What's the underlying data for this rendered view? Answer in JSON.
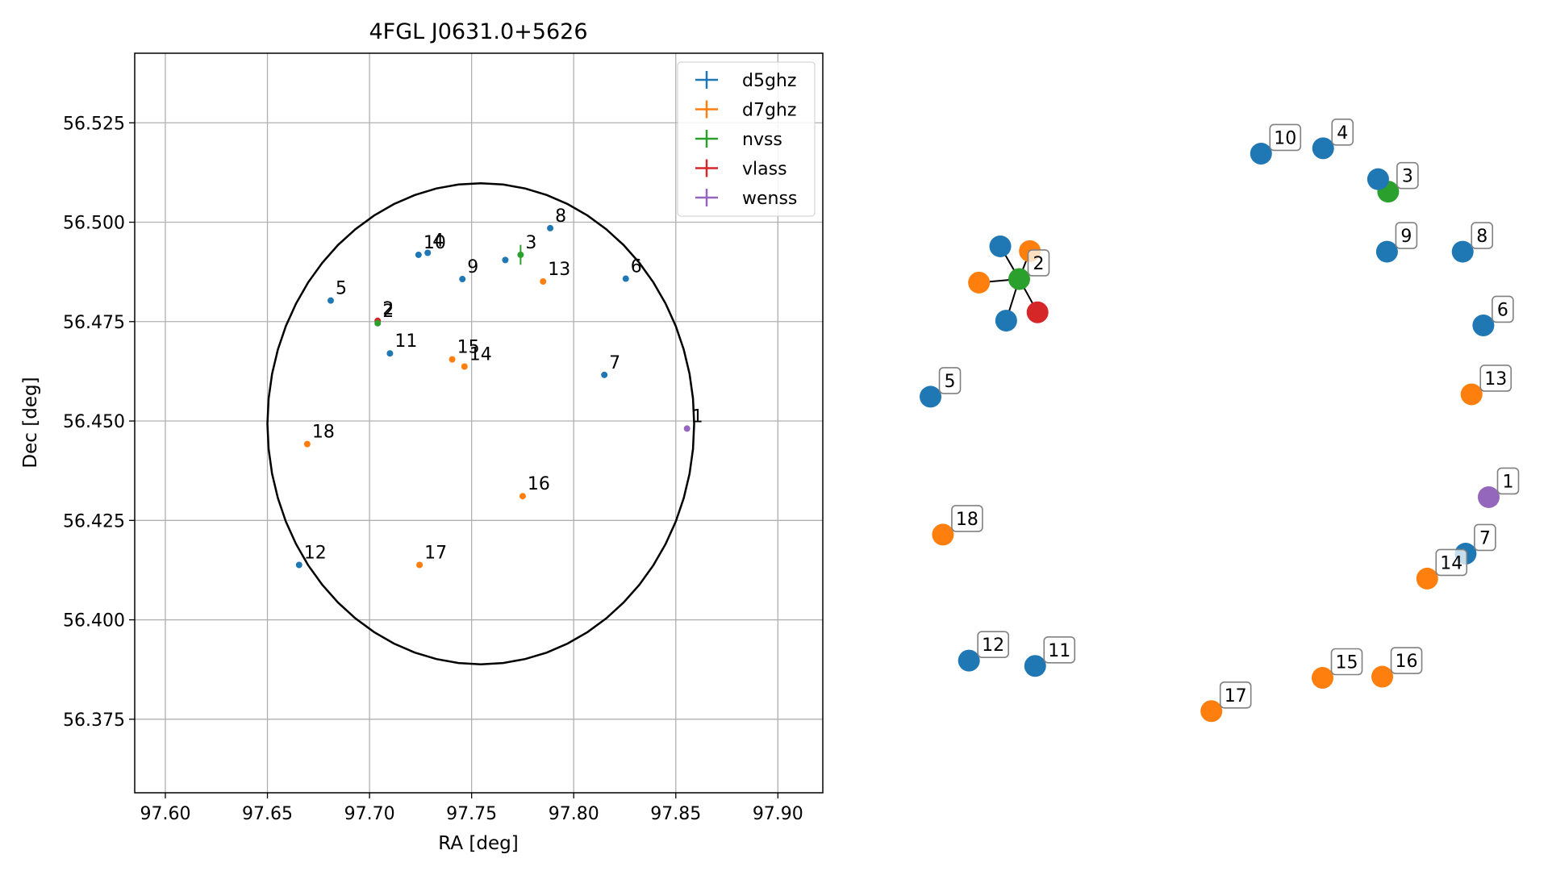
{
  "colors": {
    "d5ghz": "#1f77b4",
    "d7ghz": "#ff7f0e",
    "nvss": "#2ca02c",
    "vlass": "#d62728",
    "wenss": "#9467bd",
    "circle": "#000000",
    "grid": "#b0b0b0"
  },
  "chart_data": [
    {
      "type": "scatter",
      "title": "4FGL J0631.0+5626",
      "xlabel": "RA [deg]",
      "ylabel": "Dec [deg]",
      "xlim": [
        97.585,
        97.922
      ],
      "ylim": [
        56.3565,
        56.5425
      ],
      "xticks": [
        97.6,
        97.65,
        97.7,
        97.75,
        97.8,
        97.85,
        97.9
      ],
      "xtick_labels": [
        "97.60",
        "97.65",
        "97.70",
        "97.75",
        "97.80",
        "97.85",
        "97.90"
      ],
      "yticks": [
        56.375,
        56.4,
        56.425,
        56.45,
        56.475,
        56.5,
        56.525
      ],
      "ytick_labels": [
        "56.375",
        "56.400",
        "56.425",
        "56.450",
        "56.475",
        "56.500",
        "56.525"
      ],
      "grid": true,
      "legend_position": "top-right",
      "legend": [
        "d5ghz",
        "d7ghz",
        "nvss",
        "vlass",
        "wenss"
      ],
      "ellipse": {
        "center": [
          97.7545,
          56.4493
        ],
        "semi_axes": [
          0.1045,
          0.0605
        ]
      },
      "points": [
        {
          "label": "1",
          "survey": "wenss",
          "ra": 97.8555,
          "dec": 56.4481
        },
        {
          "label": "2",
          "survey": "vlass",
          "ra": 97.704,
          "dec": 56.4752
        },
        {
          "label": "2",
          "survey": "nvss",
          "ra": 97.704,
          "dec": 56.4746
        },
        {
          "label": "3",
          "survey": "nvss",
          "ra": 97.774,
          "dec": 56.4918,
          "dec_err": 0.0025
        },
        {
          "label": "4",
          "survey": "d5ghz",
          "ra": 97.7285,
          "dec": 56.4923
        },
        {
          "label": "5",
          "survey": "d5ghz",
          "ra": 97.681,
          "dec": 56.4803
        },
        {
          "label": "6",
          "survey": "d5ghz",
          "ra": 97.8255,
          "dec": 56.4858
        },
        {
          "label": "7",
          "survey": "d5ghz",
          "ra": 97.815,
          "dec": 56.4616
        },
        {
          "label": "8",
          "survey": "d5ghz",
          "ra": 97.7885,
          "dec": 56.4985
        },
        {
          "label": "9",
          "survey": "d5ghz",
          "ra": 97.7455,
          "dec": 56.4857
        },
        {
          "label": "10",
          "survey": "d5ghz",
          "ra": 97.724,
          "dec": 56.4918
        },
        {
          "label": "11",
          "survey": "d5ghz",
          "ra": 97.71,
          "dec": 56.467
        },
        {
          "label": "12",
          "survey": "d5ghz",
          "ra": 97.6655,
          "dec": 56.4138
        },
        {
          "label": "13",
          "survey": "d7ghz",
          "ra": 97.785,
          "dec": 56.4851
        },
        {
          "label": "14",
          "survey": "d7ghz",
          "ra": 97.7465,
          "dec": 56.4637
        },
        {
          "label": "15",
          "survey": "d7ghz",
          "ra": 97.7405,
          "dec": 56.4655
        },
        {
          "label": "16",
          "survey": "d7ghz",
          "ra": 97.775,
          "dec": 56.4311
        },
        {
          "label": "17",
          "survey": "d7ghz",
          "ra": 97.7245,
          "dec": 56.4138
        },
        {
          "label": "18",
          "survey": "d7ghz",
          "ra": 97.6695,
          "dec": 56.4442
        },
        {
          "label": "",
          "survey": "d5ghz",
          "ra": 97.7665,
          "dec": 56.4905
        }
      ]
    },
    {
      "type": "network",
      "legend": [],
      "nodes": [
        {
          "label": "1",
          "survey": "wenss",
          "x": 0.972,
          "y": 0.401
        },
        {
          "label": "2",
          "survey": "nvss",
          "x": 0.178,
          "y": 0.768
        },
        {
          "label": "3",
          "survey": "nvss",
          "x": 0.802,
          "y": 0.915
        },
        {
          "label": "4",
          "survey": "d5ghz",
          "x": 0.692,
          "y": 0.988
        },
        {
          "label": "5",
          "survey": "d5ghz",
          "x": 0.028,
          "y": 0.57
        },
        {
          "label": "6",
          "survey": "d5ghz",
          "x": 0.963,
          "y": 0.69
        },
        {
          "label": "7",
          "survey": "d5ghz",
          "x": 0.933,
          "y": 0.306
        },
        {
          "label": "8",
          "survey": "d5ghz",
          "x": 0.928,
          "y": 0.814
        },
        {
          "label": "9",
          "survey": "d5ghz",
          "x": 0.8,
          "y": 0.814
        },
        {
          "label": "10",
          "survey": "d5ghz",
          "x": 0.587,
          "y": 0.979
        },
        {
          "label": "11",
          "survey": "d5ghz",
          "x": 0.205,
          "y": 0.117
        },
        {
          "label": "12",
          "survey": "d5ghz",
          "x": 0.093,
          "y": 0.126
        },
        {
          "label": "13",
          "survey": "d7ghz",
          "x": 0.943,
          "y": 0.574
        },
        {
          "label": "14",
          "survey": "d7ghz",
          "x": 0.868,
          "y": 0.264
        },
        {
          "label": "15",
          "survey": "d7ghz",
          "x": 0.691,
          "y": 0.097
        },
        {
          "label": "16",
          "survey": "d7ghz",
          "x": 0.792,
          "y": 0.099
        },
        {
          "label": "17",
          "survey": "d7ghz",
          "x": 0.503,
          "y": 0.041
        },
        {
          "label": "18",
          "survey": "d7ghz",
          "x": 0.049,
          "y": 0.338
        },
        {
          "label": "",
          "survey": "d5ghz",
          "x": 0.146,
          "y": 0.823
        },
        {
          "label": "",
          "survey": "d5ghz",
          "x": 0.156,
          "y": 0.698
        },
        {
          "label": "",
          "survey": "d7ghz",
          "x": 0.11,
          "y": 0.762
        },
        {
          "label": "",
          "survey": "d7ghz",
          "x": 0.196,
          "y": 0.815
        },
        {
          "label": "",
          "survey": "vlass",
          "x": 0.209,
          "y": 0.712
        },
        {
          "label": "",
          "survey": "d5ghz",
          "x": 0.785,
          "y": 0.936
        }
      ],
      "edges": [
        [
          1,
          18
        ],
        [
          1,
          19
        ],
        [
          1,
          20
        ],
        [
          1,
          21
        ],
        [
          1,
          22
        ],
        [
          2,
          23
        ]
      ]
    }
  ]
}
